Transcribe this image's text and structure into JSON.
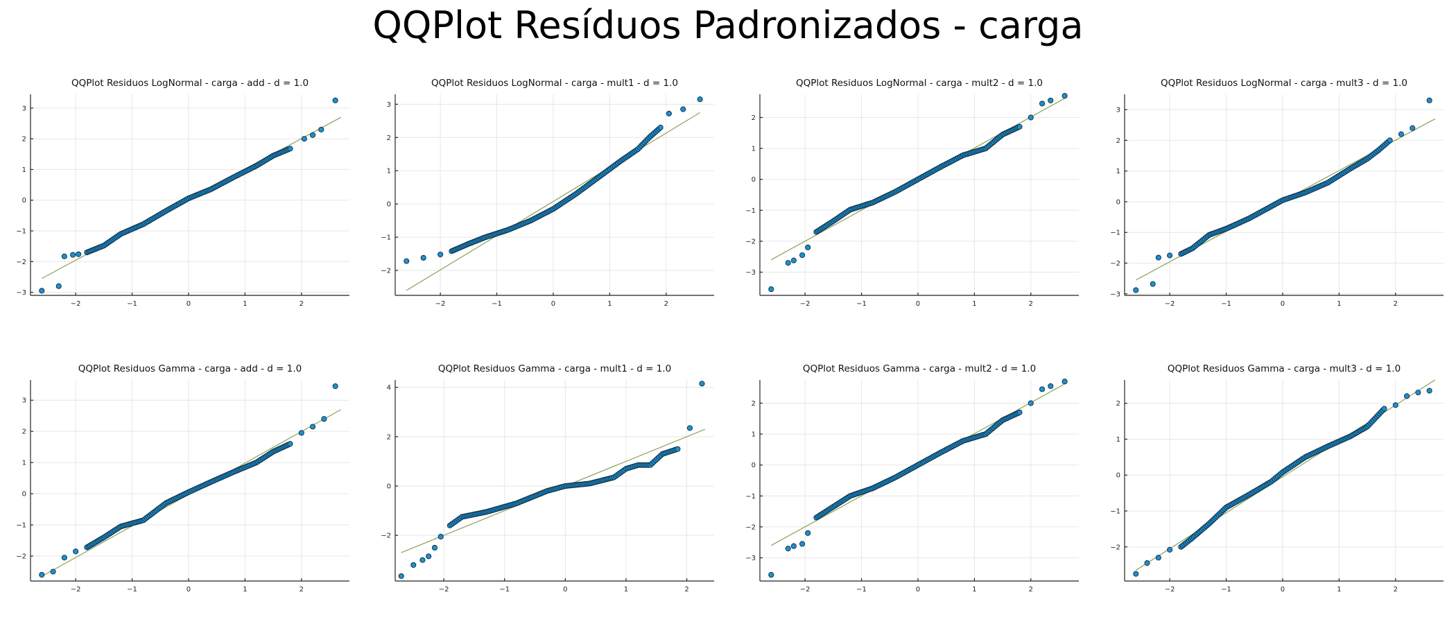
{
  "figure": {
    "title": "QQPlot Resíduos Padronizados - carga"
  },
  "colors": {
    "points": "#1f8fd0",
    "point_edge": "#0d2a3d",
    "reference_line": "#8aa05a",
    "axis": "#222222",
    "grid": "#e6e6e6"
  },
  "chart_data": [
    {
      "type": "scatter",
      "title": "QQPlot Residuos LogNormal - carga - add - d = 1.0",
      "xlim": [
        -2.8,
        2.85
      ],
      "ylim": [
        -3.1,
        3.45
      ],
      "xticks": [
        -2,
        -1,
        0,
        1,
        2
      ],
      "yticks": [
        -3,
        -2,
        -1,
        0,
        1,
        2,
        3
      ],
      "reference_line": [
        [
          -2.6,
          -2.55
        ],
        [
          2.7,
          2.7
        ]
      ],
      "x": [
        -2.6,
        -2.3,
        -2.2,
        -2.05,
        -1.95,
        -1.8,
        -1.5,
        -1.2,
        -0.8,
        -0.4,
        0,
        0.4,
        0.8,
        1.2,
        1.5,
        1.8,
        2.05,
        2.2,
        2.35,
        2.6
      ],
      "y": [
        -2.95,
        -2.8,
        -1.83,
        -1.78,
        -1.76,
        -1.7,
        -1.48,
        -1.1,
        -0.78,
        -0.35,
        0.06,
        0.36,
        0.75,
        1.12,
        1.45,
        1.68,
        2.0,
        2.12,
        2.3,
        3.25
      ],
      "grid": true
    },
    {
      "type": "scatter",
      "title": "QQPlot Residuos LogNormal - carga - mult1 - d = 1.0",
      "xlim": [
        -2.8,
        2.85
      ],
      "ylim": [
        -2.75,
        3.3
      ],
      "xticks": [
        -2,
        -1,
        0,
        1,
        2
      ],
      "yticks": [
        -2,
        -1,
        0,
        1,
        2,
        3
      ],
      "reference_line": [
        [
          -2.6,
          -2.6
        ],
        [
          2.6,
          2.75
        ]
      ],
      "x": [
        -2.6,
        -2.3,
        -2.0,
        -1.8,
        -1.5,
        -1.2,
        -0.8,
        -0.4,
        0,
        0.4,
        0.8,
        1.0,
        1.2,
        1.5,
        1.7,
        1.9,
        2.05,
        2.3,
        2.6
      ],
      "y": [
        -1.72,
        -1.62,
        -1.52,
        -1.42,
        -1.2,
        -1.0,
        -0.78,
        -0.5,
        -0.15,
        0.3,
        0.8,
        1.05,
        1.3,
        1.65,
        2.0,
        2.3,
        2.72,
        2.85,
        3.15
      ],
      "grid": true
    },
    {
      "type": "scatter",
      "title": "QQPlot Residuos LogNormal - carga - mult2 - d = 1.0",
      "xlim": [
        -2.8,
        2.85
      ],
      "ylim": [
        -3.75,
        2.75
      ],
      "xticks": [
        -2,
        -1,
        0,
        1,
        2
      ],
      "yticks": [
        -3,
        -2,
        -1,
        0,
        1,
        2
      ],
      "reference_line": [
        [
          -2.6,
          -2.6
        ],
        [
          2.6,
          2.62
        ]
      ],
      "x": [
        -2.6,
        -2.3,
        -2.2,
        -2.05,
        -1.95,
        -1.8,
        -1.5,
        -1.2,
        -0.8,
        -0.4,
        0,
        0.4,
        0.8,
        1.2,
        1.5,
        1.8,
        2.0,
        2.2,
        2.35,
        2.6
      ],
      "y": [
        -3.55,
        -2.7,
        -2.62,
        -2.45,
        -2.2,
        -1.7,
        -1.35,
        -0.98,
        -0.75,
        -0.4,
        0.0,
        0.4,
        0.78,
        1.0,
        1.45,
        1.7,
        2.0,
        2.45,
        2.55,
        2.7
      ],
      "grid": true
    },
    {
      "type": "scatter",
      "title": "QQPlot Residuos LogNormal - carga - mult3 - d = 1.0",
      "xlim": [
        -2.8,
        2.85
      ],
      "ylim": [
        -3.05,
        3.5
      ],
      "xticks": [
        -2,
        -1,
        0,
        1,
        2
      ],
      "yticks": [
        -3,
        -2,
        -1,
        0,
        1,
        2,
        3
      ],
      "reference_line": [
        [
          -2.6,
          -2.55
        ],
        [
          2.7,
          2.7
        ]
      ],
      "x": [
        -2.6,
        -2.3,
        -2.2,
        -2.0,
        -1.8,
        -1.6,
        -1.3,
        -1.0,
        -0.6,
        -0.2,
        0,
        0.4,
        0.8,
        1.2,
        1.5,
        1.7,
        1.9,
        2.1,
        2.3,
        2.6
      ],
      "y": [
        -2.88,
        -2.68,
        -1.82,
        -1.75,
        -1.7,
        -1.52,
        -1.08,
        -0.88,
        -0.55,
        -0.15,
        0.05,
        0.3,
        0.62,
        1.08,
        1.4,
        1.68,
        2.0,
        2.2,
        2.4,
        3.3
      ],
      "grid": true
    },
    {
      "type": "scatter",
      "title": "QQPlot Residuos Gamma - carga - add - d = 1.0",
      "xlim": [
        -2.8,
        2.85
      ],
      "ylim": [
        -2.8,
        3.65
      ],
      "xticks": [
        -2,
        -1,
        0,
        1,
        2
      ],
      "yticks": [
        -2,
        -1,
        0,
        1,
        2,
        3
      ],
      "reference_line": [
        [
          -2.6,
          -2.65
        ],
        [
          2.7,
          2.7
        ]
      ],
      "x": [
        -2.6,
        -2.4,
        -2.2,
        -2.0,
        -1.8,
        -1.5,
        -1.2,
        -0.8,
        -0.4,
        0,
        0.4,
        0.8,
        1.2,
        1.5,
        1.8,
        2.0,
        2.2,
        2.4,
        2.6
      ],
      "y": [
        -2.6,
        -2.5,
        -2.05,
        -1.85,
        -1.72,
        -1.4,
        -1.05,
        -0.85,
        -0.3,
        0.05,
        0.38,
        0.7,
        1.0,
        1.35,
        1.6,
        1.95,
        2.15,
        2.4,
        3.45
      ],
      "grid": true
    },
    {
      "type": "scatter",
      "title": "QQPlot Residuos Gamma - carga - mult1 - d = 1.0",
      "xlim": [
        -2.8,
        2.45
      ],
      "ylim": [
        -3.85,
        4.3
      ],
      "xticks": [
        -2,
        -1,
        0,
        1,
        2
      ],
      "yticks": [
        -2,
        0,
        2,
        4
      ],
      "reference_line": [
        [
          -2.7,
          -2.7
        ],
        [
          2.3,
          2.3
        ]
      ],
      "x": [
        -2.7,
        -2.5,
        -2.35,
        -2.25,
        -2.15,
        -2.05,
        -1.9,
        -1.7,
        -1.3,
        -0.8,
        -0.3,
        0,
        0.4,
        0.8,
        1.0,
        1.2,
        1.4,
        1.6,
        1.85,
        2.05,
        2.25
      ],
      "y": [
        -3.65,
        -3.2,
        -3.0,
        -2.85,
        -2.5,
        -2.05,
        -1.6,
        -1.25,
        -1.05,
        -0.7,
        -0.2,
        0.0,
        0.1,
        0.35,
        0.7,
        0.85,
        0.85,
        1.3,
        1.5,
        2.35,
        4.15
      ],
      "grid": true
    },
    {
      "type": "scatter",
      "title": "QQPlot Residuos Gamma - carga - mult2 - d = 1.0",
      "xlim": [
        -2.8,
        2.85
      ],
      "ylim": [
        -3.75,
        2.75
      ],
      "xticks": [
        -2,
        -1,
        0,
        1,
        2
      ],
      "yticks": [
        -3,
        -2,
        -1,
        0,
        1,
        2
      ],
      "reference_line": [
        [
          -2.6,
          -2.6
        ],
        [
          2.6,
          2.62
        ]
      ],
      "x": [
        -2.6,
        -2.3,
        -2.2,
        -2.05,
        -1.95,
        -1.8,
        -1.5,
        -1.2,
        -0.8,
        -0.4,
        0,
        0.4,
        0.8,
        1.2,
        1.5,
        1.8,
        2.0,
        2.2,
        2.35,
        2.6
      ],
      "y": [
        -3.55,
        -2.7,
        -2.62,
        -2.55,
        -2.2,
        -1.7,
        -1.35,
        -1.0,
        -0.75,
        -0.4,
        0.0,
        0.4,
        0.78,
        1.0,
        1.45,
        1.7,
        2.0,
        2.45,
        2.55,
        2.7
      ],
      "grid": true
    },
    {
      "type": "scatter",
      "title": "QQPlot Residuos Gamma - carga - mult3 - d = 1.0",
      "xlim": [
        -2.8,
        2.85
      ],
      "ylim": [
        -2.95,
        2.65
      ],
      "xticks": [
        -2,
        -1,
        0,
        1,
        2
      ],
      "yticks": [
        -2,
        -1,
        0,
        1,
        2
      ],
      "reference_line": [
        [
          -2.6,
          -2.65
        ],
        [
          2.7,
          2.65
        ]
      ],
      "x": [
        -2.6,
        -2.4,
        -2.2,
        -2.0,
        -1.8,
        -1.6,
        -1.3,
        -1.0,
        -0.6,
        -0.2,
        0,
        0.4,
        0.8,
        1.2,
        1.5,
        1.8,
        2.0,
        2.2,
        2.4,
        2.6
      ],
      "y": [
        -2.75,
        -2.45,
        -2.3,
        -2.08,
        -2.0,
        -1.75,
        -1.35,
        -0.9,
        -0.55,
        -0.18,
        0.08,
        0.5,
        0.8,
        1.08,
        1.35,
        1.85,
        1.95,
        2.2,
        2.3,
        2.35
      ],
      "grid": true
    }
  ]
}
